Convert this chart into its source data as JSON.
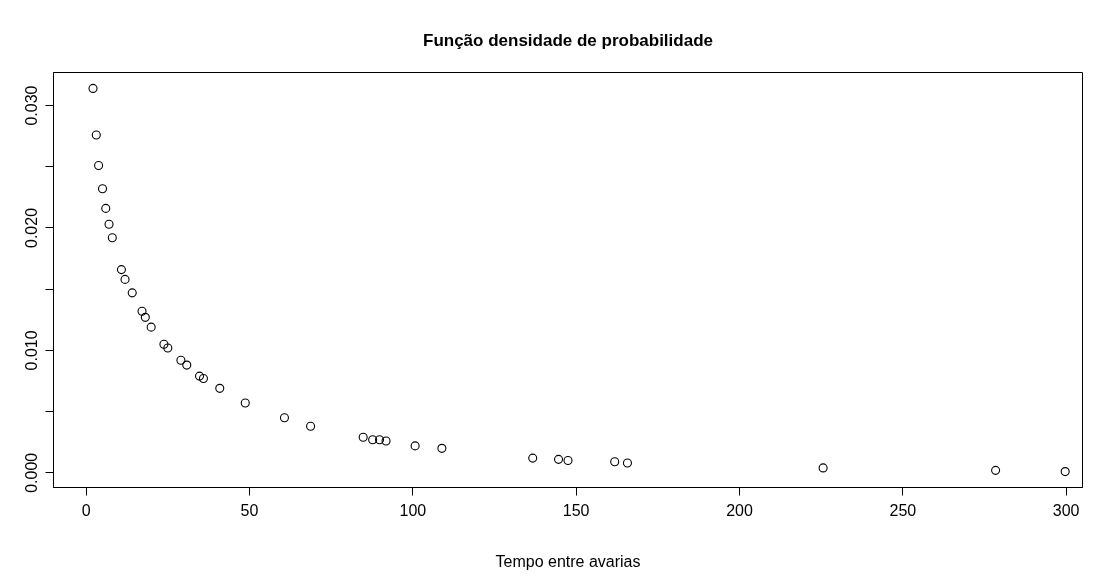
{
  "chart_data": {
    "type": "scatter",
    "title": "Função densidade de probabilidade",
    "xlabel": "Tempo entre avarias",
    "x": [
      2.1,
      3.1,
      3.8,
      5.0,
      6.0,
      7.0,
      8.0,
      10.8,
      11.9,
      14.1,
      17.1,
      18.1,
      19.9,
      23.8,
      25.0,
      29.0,
      30.8,
      34.7,
      35.9,
      40.9,
      48.7,
      60.7,
      68.7,
      84.8,
      87.7,
      89.8,
      91.8,
      100.7,
      108.9,
      136.7,
      144.6,
      147.5,
      161.8,
      165.7,
      225.6,
      278.4,
      299.7
    ],
    "series": [
      {
        "color": "#000000",
        "values": [
          0.0314,
          0.0276,
          0.0251,
          0.0232,
          0.0216,
          0.0203,
          0.0192,
          0.0166,
          0.0158,
          0.0147,
          0.0132,
          0.0127,
          0.0119,
          0.0105,
          0.0102,
          0.0092,
          0.0088,
          0.0079,
          0.0077,
          0.0069,
          0.0057,
          0.0045,
          0.0038,
          0.0029,
          0.0027,
          0.0027,
          0.0026,
          0.0022,
          0.002,
          0.0012,
          0.0011,
          0.001,
          0.0009,
          0.0008,
          0.0004,
          0.0002,
          0.0001
        ]
      }
    ],
    "marker": "circle",
    "xlim": [
      -10,
      305
    ],
    "ylim": [
      -0.0012,
      0.0327
    ],
    "xticks": [
      0,
      50,
      100,
      150,
      200,
      250,
      300
    ],
    "yticks": [
      {
        "value": 0,
        "label": "0.000"
      },
      {
        "value": 0.005,
        "label": null
      },
      {
        "value": 0.01,
        "label": "0.010"
      },
      {
        "value": 0.015,
        "label": null
      },
      {
        "value": 0.02,
        "label": "0.020"
      },
      {
        "value": 0.025,
        "label": null
      },
      {
        "value": 0.03,
        "label": "0.030"
      }
    ]
  }
}
